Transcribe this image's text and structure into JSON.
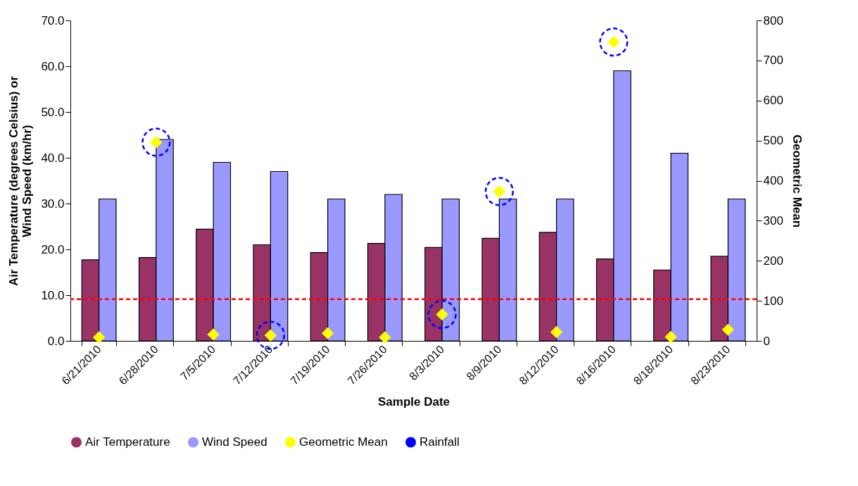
{
  "chart_data": {
    "type": "bar",
    "xlabel": "Sample Date",
    "ylabel": "Air Temperature (degrees Celsius) or Wind Speed (km/hr)",
    "y2label": "Geometric Mean",
    "categories": [
      "6/21/2010",
      "6/28/2010",
      "7/5/2010",
      "7/12/2010",
      "7/19/2010",
      "7/26/2010",
      "8/3/2010",
      "8/9/2010",
      "8/12/2010",
      "8/16/2010",
      "8/18/2010",
      "8/23/2010"
    ],
    "series": [
      {
        "name": "Air Temperature",
        "color": "#993366",
        "values": [
          17.7,
          18.2,
          24.4,
          21.0,
          19.3,
          21.3,
          20.4,
          22.4,
          23.7,
          17.9,
          15.5,
          18.5
        ]
      },
      {
        "name": "Wind Speed",
        "color": "#9999ff",
        "values": [
          31,
          44,
          39,
          37,
          31,
          32,
          31,
          31,
          31,
          59,
          41,
          31
        ]
      },
      {
        "name": "Geometric Mean",
        "type": "scatter",
        "marker": "diamond",
        "axis": "y2",
        "color": "#ffff00",
        "values": [
          9,
          496,
          16,
          14,
          19,
          9,
          66,
          373,
          22,
          746,
          10,
          28
        ]
      },
      {
        "name": "Rainfall",
        "type": "scatter",
        "marker": "circle",
        "line_style": "dashed",
        "axis": "y2",
        "color": "#0000ff",
        "values": [
          null,
          496,
          null,
          14,
          null,
          null,
          66,
          373,
          null,
          746,
          null,
          null
        ]
      }
    ],
    "ylim": [
      0,
      70
    ],
    "yticks": [
      {
        "value": 0,
        "label": "0.0"
      },
      {
        "value": 10,
        "label": "10.0"
      },
      {
        "value": 20,
        "label": "20.0"
      },
      {
        "value": 30,
        "label": "30.0"
      },
      {
        "value": 40,
        "label": "40.0"
      },
      {
        "value": 50,
        "label": "50.0"
      },
      {
        "value": 60,
        "label": "60.0"
      },
      {
        "value": 70,
        "label": "70.0"
      }
    ],
    "y2lim": [
      0,
      800
    ],
    "y2ticks": [
      0,
      100,
      200,
      300,
      400,
      500,
      600,
      700,
      800
    ],
    "ref_lines": [
      {
        "axis": "y2",
        "value": 104,
        "color": "#ff0000",
        "line_style": "dashed"
      }
    ],
    "grid": false,
    "legend": "bottom"
  }
}
